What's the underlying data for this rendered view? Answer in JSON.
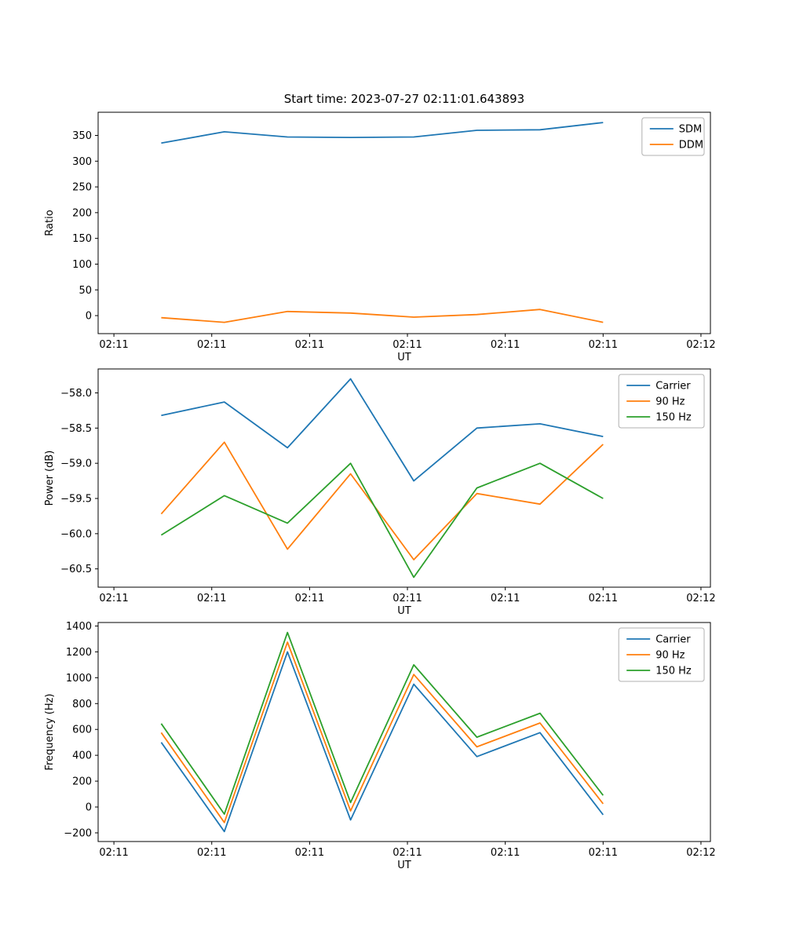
{
  "figure": {
    "background": "#ffffff",
    "palette": {
      "blue": "#1f77b4",
      "orange": "#ff7f0e",
      "green": "#2ca02c"
    }
  },
  "chart_data": [
    {
      "type": "line",
      "title": "Start time: 2023-07-27 02:11:01.643893",
      "xlabel": "UT",
      "ylabel": "Ratio",
      "xlim": [
        -1.0,
        8.7
      ],
      "ylim": [
        -35,
        395
      ],
      "y_ticks": [
        0,
        50,
        100,
        150,
        200,
        250,
        300,
        350
      ],
      "x_tick_positions": [
        -0.75,
        0.8,
        2.35,
        3.9,
        5.45,
        7.0,
        8.55
      ],
      "x_tick_labels": [
        "02:11",
        "02:11",
        "02:11",
        "02:11",
        "02:11",
        "02:11",
        "02:12"
      ],
      "x": [
        0,
        1,
        2,
        3,
        4,
        5,
        6,
        7
      ],
      "series": [
        {
          "name": "SDM",
          "color": "#1f77b4",
          "values": [
            335,
            357,
            347,
            346,
            347,
            360,
            361,
            375
          ]
        },
        {
          "name": "DDM",
          "color": "#ff7f0e",
          "values": [
            -4,
            -13,
            8,
            5,
            -3,
            2,
            12,
            -13
          ]
        }
      ],
      "legend_position": "top-right",
      "grid": false
    },
    {
      "type": "line",
      "title": "",
      "xlabel": "UT",
      "ylabel": "Power (dB)",
      "xlim": [
        -1.0,
        8.7
      ],
      "ylim": [
        -60.76,
        -57.66
      ],
      "y_ticks": [
        -60.5,
        -60.0,
        -59.5,
        -59.0,
        -58.5,
        -58.0
      ],
      "x_tick_positions": [
        -0.75,
        0.8,
        2.35,
        3.9,
        5.45,
        7.0,
        8.55
      ],
      "x_tick_labels": [
        "02:11",
        "02:11",
        "02:11",
        "02:11",
        "02:11",
        "02:11",
        "02:12"
      ],
      "x": [
        0,
        1,
        2,
        3,
        4,
        5,
        6,
        7
      ],
      "series": [
        {
          "name": "Carrier",
          "color": "#1f77b4",
          "values": [
            -58.32,
            -58.13,
            -58.78,
            -57.8,
            -59.25,
            -58.5,
            -58.44,
            -58.62
          ]
        },
        {
          "name": "90 Hz",
          "color": "#ff7f0e",
          "values": [
            -59.72,
            -58.7,
            -60.22,
            -59.15,
            -60.37,
            -59.43,
            -59.58,
            -58.73
          ]
        },
        {
          "name": "150 Hz",
          "color": "#2ca02c",
          "values": [
            -60.02,
            -59.46,
            -59.85,
            -59.0,
            -60.62,
            -59.35,
            -59.0,
            -59.5
          ]
        }
      ],
      "legend_position": "top-right",
      "grid": false
    },
    {
      "type": "line",
      "title": "",
      "xlabel": "UT",
      "ylabel": "Frequency (Hz)",
      "xlim": [
        -1.0,
        8.7
      ],
      "ylim": [
        -267,
        1427
      ],
      "y_ticks": [
        -200,
        0,
        200,
        400,
        600,
        800,
        1000,
        1200,
        1400
      ],
      "x_tick_positions": [
        -0.75,
        0.8,
        2.35,
        3.9,
        5.45,
        7.0,
        8.55
      ],
      "x_tick_labels": [
        "02:11",
        "02:11",
        "02:11",
        "02:11",
        "02:11",
        "02:11",
        "02:12"
      ],
      "x": [
        0,
        1,
        2,
        3,
        4,
        5,
        6,
        7
      ],
      "series": [
        {
          "name": "Carrier",
          "color": "#1f77b4",
          "values": [
            500,
            -190,
            1200,
            -100,
            950,
            390,
            575,
            -60
          ]
        },
        {
          "name": "90 Hz",
          "color": "#ff7f0e",
          "values": [
            575,
            -120,
            1275,
            -30,
            1025,
            465,
            650,
            25
          ]
        },
        {
          "name": "150 Hz",
          "color": "#2ca02c",
          "values": [
            645,
            -55,
            1350,
            35,
            1100,
            540,
            725,
            90
          ]
        }
      ],
      "legend_position": "top-right",
      "grid": false
    }
  ]
}
